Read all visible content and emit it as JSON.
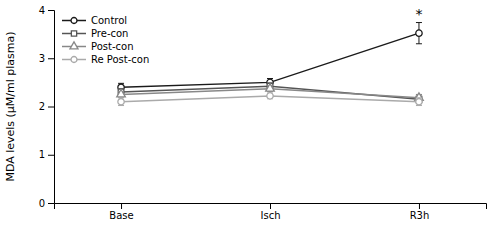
{
  "chart_data": {
    "type": "line",
    "categories": [
      "Base",
      "Isch",
      "R3h"
    ],
    "series": [
      {
        "name": "Control",
        "color": "#1a1a1a",
        "marker": "circle",
        "line_style": "solid",
        "values": [
          2.4,
          2.5,
          3.52
        ],
        "errors": [
          0.08,
          0.08,
          0.22
        ]
      },
      {
        "name": "Pre-con",
        "color": "#555555",
        "marker": "square",
        "line_style": "solid",
        "values": [
          2.3,
          2.42,
          2.15
        ],
        "errors": [
          0.07,
          0.07,
          0.09
        ]
      },
      {
        "name": "Post-con",
        "color": "#888888",
        "marker": "triangle",
        "line_style": "solid",
        "values": [
          2.25,
          2.37,
          2.18
        ],
        "errors": [
          0.06,
          0.06,
          0.07
        ]
      },
      {
        "name": "Re Post-con",
        "color": "#aaaaaa",
        "marker": "circle",
        "line_style": "solid",
        "values": [
          2.1,
          2.22,
          2.1
        ],
        "errors": [
          0.08,
          0.06,
          0.08
        ]
      }
    ],
    "y_label": "MDA levels (μM/ml plasma)",
    "ylim": [
      0,
      4
    ],
    "yticks": [
      0,
      1,
      2,
      3,
      4
    ],
    "annotations": [
      {
        "text": "*",
        "category": "R3h",
        "y": 3.82
      }
    ],
    "legend": "upper left",
    "grid": false
  }
}
